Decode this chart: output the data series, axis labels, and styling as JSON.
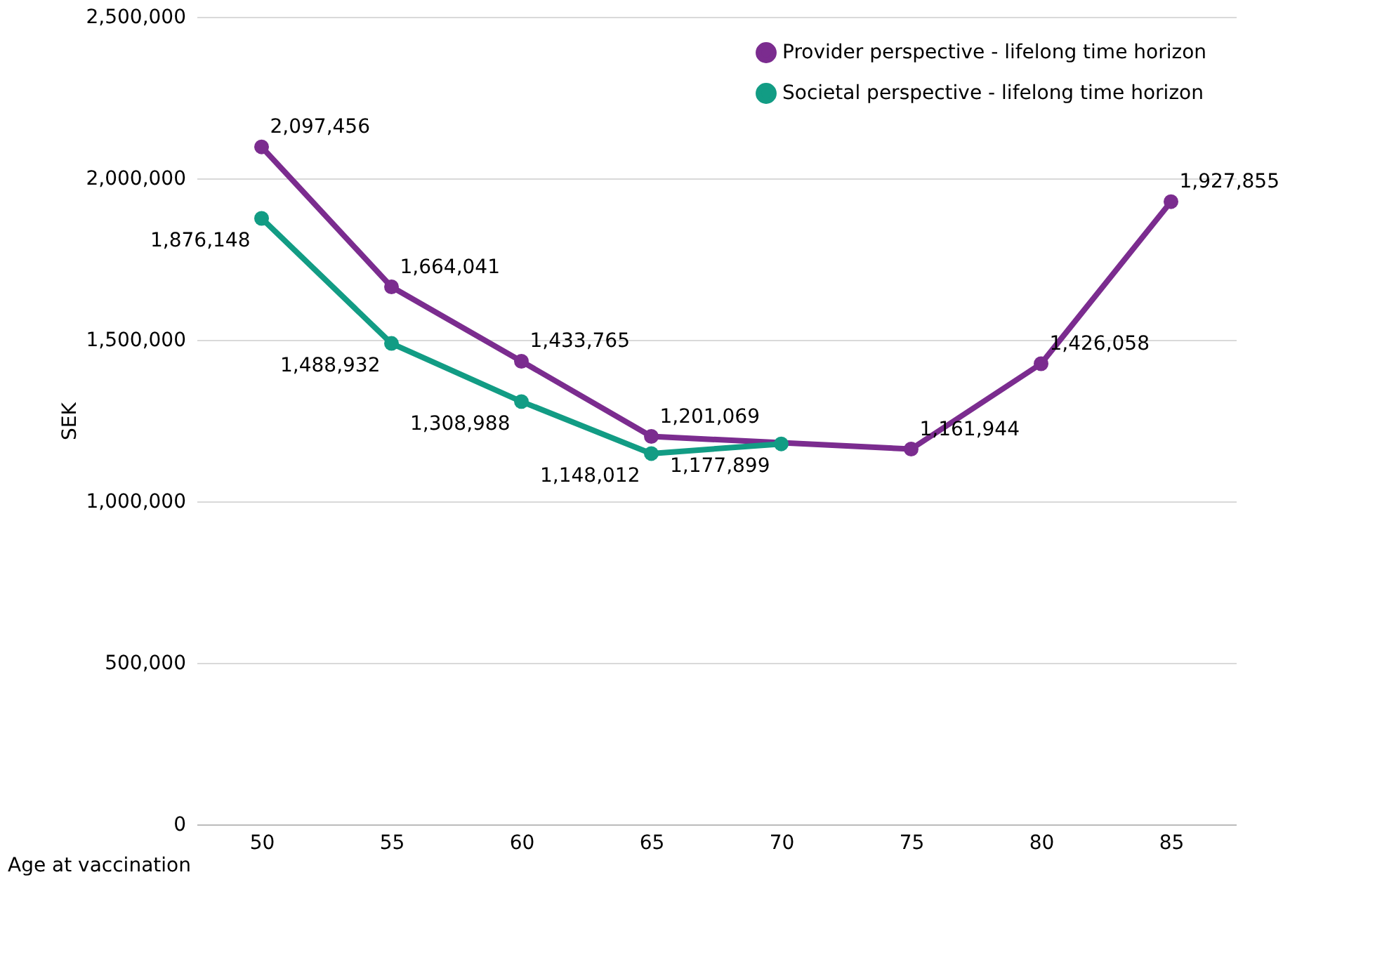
{
  "chart_data": {
    "type": "line",
    "xlabel": "Age at vaccination",
    "ylabel": "SEK",
    "categories": [
      "50",
      "55",
      "60",
      "65",
      "70",
      "75",
      "80",
      "85"
    ],
    "series": [
      {
        "name": "Provider perspective - lifelong time horizon",
        "color": "#7b2c8f",
        "values": [
          2097456,
          1664041,
          1433765,
          1201069,
          null,
          1161944,
          1426058,
          1927855
        ],
        "value_labels": [
          "2,097,456",
          "1,664,041",
          "1,433,765",
          "1,201,069",
          null,
          "1,161,944",
          "1,426,058",
          "1,927,855"
        ]
      },
      {
        "name": "Societal perspective  - lifelong time horizon",
        "color": "#129c84",
        "values": [
          1876148,
          1488932,
          1308988,
          1148012,
          1177899,
          null,
          null,
          null
        ],
        "value_labels": [
          "1,876,148",
          "1,488,932",
          "1,308,988",
          "1,148,012",
          "1,177,899",
          null,
          null,
          null
        ]
      }
    ],
    "ylim": [
      0,
      2500000
    ],
    "yticks": [
      0,
      {
        "value": 500000,
        "label": "500,000"
      },
      {
        "value": 1000000,
        "label": "1,000,000"
      },
      {
        "value": 1500000,
        "label": "1,500,000"
      },
      {
        "value": 2000000,
        "label": "2,000,000"
      },
      {
        "value": 2500000,
        "label": "2,500,000"
      }
    ],
    "grid": "y",
    "legend": "top right",
    "marker": "circle",
    "line_style": "solid"
  }
}
